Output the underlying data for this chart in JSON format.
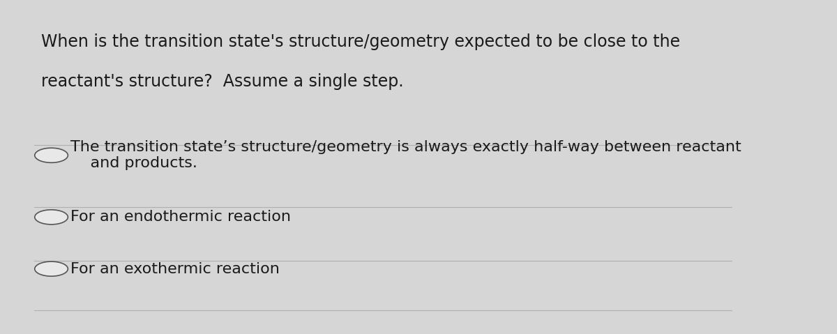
{
  "background_color": "#d6d6d6",
  "card_color": "#e8e8e8",
  "question_text_line1": "When is the transition state's structure/geometry expected to be close to the",
  "question_text_line2": "reactant's structure?  Assume a single step.",
  "options": [
    "The transition state’s structure/geometry is always exactly half-way between reactant\n    and products.",
    "For an endothermic reaction",
    "For an exothermic reaction"
  ],
  "divider_color": "#b0b0b0",
  "text_color": "#1a1a1a",
  "question_fontsize": 17,
  "option_fontsize": 16,
  "circle_edge_color": "#555555",
  "circle_fill_color": "#e8e8e8"
}
